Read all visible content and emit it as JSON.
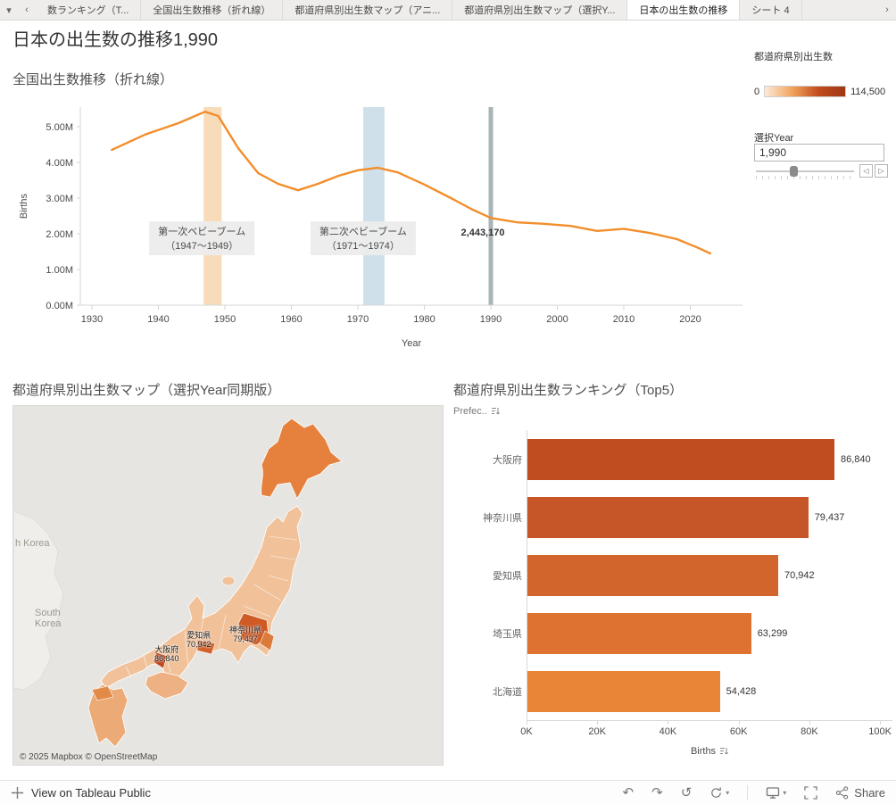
{
  "tabs": {
    "items": [
      {
        "label": "数ランキング（T...",
        "active": false
      },
      {
        "label": "全国出生数推移（折れ線）",
        "active": false
      },
      {
        "label": "都道府県別出生数マップ（アニ...",
        "active": false
      },
      {
        "label": "都道府県別出生数マップ（選択Y...",
        "active": false
      },
      {
        "label": "日本の出生数の推移",
        "active": true
      },
      {
        "label": "シート 4",
        "active": false
      }
    ]
  },
  "icons": {
    "workbook_caret": "▾",
    "tabs_scroll_left": "‹",
    "tabs_scroll_right": "›",
    "undo": "↶",
    "redo": "↷",
    "revert": "↺",
    "slider_prev": "◁",
    "slider_next": "▷",
    "toolbar_caret": "▾"
  },
  "header": {
    "title": "日本の出生数の推移1,990"
  },
  "legend": {
    "title": "都道府県別出生数",
    "min": "0",
    "max": "114,500",
    "gradient": [
      "#fdeadb",
      "#f2a55e",
      "#c24c1e",
      "#9e3716"
    ]
  },
  "year_selector": {
    "label": "選択Year",
    "value": "1,990"
  },
  "map": {
    "title": "都道府県別出生数マップ（選択Year同期版）",
    "attribution": "© 2025 Mapbox  © OpenStreetMap",
    "sea_labels": [
      {
        "text": "h Korea"
      },
      {
        "text": "South Korea"
      }
    ],
    "prefecture_labels": [
      {
        "name": "神奈川県",
        "value": "79,437"
      },
      {
        "name": "愛知県",
        "value": "70,942"
      },
      {
        "name": "大阪府",
        "value": "86,840"
      }
    ]
  },
  "toolbar": {
    "view_label": "View on Tableau Public",
    "share_label": "Share"
  },
  "chart_data": [
    {
      "id": "national-births-line",
      "type": "line",
      "title": "全国出生数推移（折れ線）",
      "xlabel": "Year",
      "ylabel": "Births",
      "line_color": "#f28e2b",
      "x_ticks": [
        1930,
        1940,
        1950,
        1960,
        1970,
        1980,
        1990,
        2000,
        2010,
        2020
      ],
      "y_ticks": [
        "0.00M",
        "1.00M",
        "2.00M",
        "3.00M",
        "4.00M",
        "5.00M"
      ],
      "xlim": [
        1928,
        2026
      ],
      "ylim_millions": [
        0,
        5.6
      ],
      "grid": false,
      "points": [
        {
          "year": 1933,
          "births_m": 4.35
        },
        {
          "year": 1938,
          "births_m": 4.78
        },
        {
          "year": 1943,
          "births_m": 5.1
        },
        {
          "year": 1947,
          "births_m": 5.42
        },
        {
          "year": 1949,
          "births_m": 5.3
        },
        {
          "year": 1952,
          "births_m": 4.4
        },
        {
          "year": 1955,
          "births_m": 3.7
        },
        {
          "year": 1958,
          "births_m": 3.4
        },
        {
          "year": 1961,
          "births_m": 3.22
        },
        {
          "year": 1964,
          "births_m": 3.4
        },
        {
          "year": 1967,
          "births_m": 3.62
        },
        {
          "year": 1970,
          "births_m": 3.78
        },
        {
          "year": 1973,
          "births_m": 3.85
        },
        {
          "year": 1976,
          "births_m": 3.72
        },
        {
          "year": 1980,
          "births_m": 3.38
        },
        {
          "year": 1984,
          "births_m": 3.0
        },
        {
          "year": 1987,
          "births_m": 2.7
        },
        {
          "year": 1990,
          "births_m": 2.443
        },
        {
          "year": 1994,
          "births_m": 2.32
        },
        {
          "year": 1998,
          "births_m": 2.28
        },
        {
          "year": 2002,
          "births_m": 2.22
        },
        {
          "year": 2006,
          "births_m": 2.08
        },
        {
          "year": 2010,
          "births_m": 2.14
        },
        {
          "year": 2014,
          "births_m": 2.02
        },
        {
          "year": 2018,
          "births_m": 1.85
        },
        {
          "year": 2021,
          "births_m": 1.62
        },
        {
          "year": 2023,
          "births_m": 1.45
        }
      ],
      "annotations": [
        {
          "label_line1": "第一次ベビーブーム",
          "label_line2": "（1947～1949）",
          "band": [
            1946.8,
            1949.5
          ],
          "band_color": "#f8dcba"
        },
        {
          "label_line1": "第二次ベビーブーム",
          "label_line2": "（1971～1974）",
          "band": [
            1970.8,
            1974.0
          ],
          "band_color": "#cfe0ea"
        }
      ],
      "reference_line": {
        "year": 1990,
        "color": "#a9b4b6",
        "value_label": "2,443,170"
      }
    },
    {
      "id": "prefecture-top5-bar",
      "type": "bar",
      "title": "都道府県別出生数ランキング（Top5）",
      "row_header": "Prefec..",
      "xlabel": "Births",
      "categories": [
        "大阪府",
        "神奈川県",
        "愛知県",
        "埼玉県",
        "北海道"
      ],
      "values": [
        86840,
        79437,
        70942,
        63299,
        54428
      ],
      "value_labels": [
        "86,840",
        "79,437",
        "70,942",
        "63,299",
        "54,428"
      ],
      "bar_colors": [
        "#c04d20",
        "#c65628",
        "#d2652c",
        "#de7231",
        "#e88536"
      ],
      "x_ticks": [
        "0K",
        "20K",
        "40K",
        "60K",
        "80K",
        "100K"
      ],
      "x_tick_values": [
        0,
        20000,
        40000,
        60000,
        80000,
        100000
      ],
      "xlim": [
        0,
        103000
      ],
      "grid": false
    }
  ]
}
